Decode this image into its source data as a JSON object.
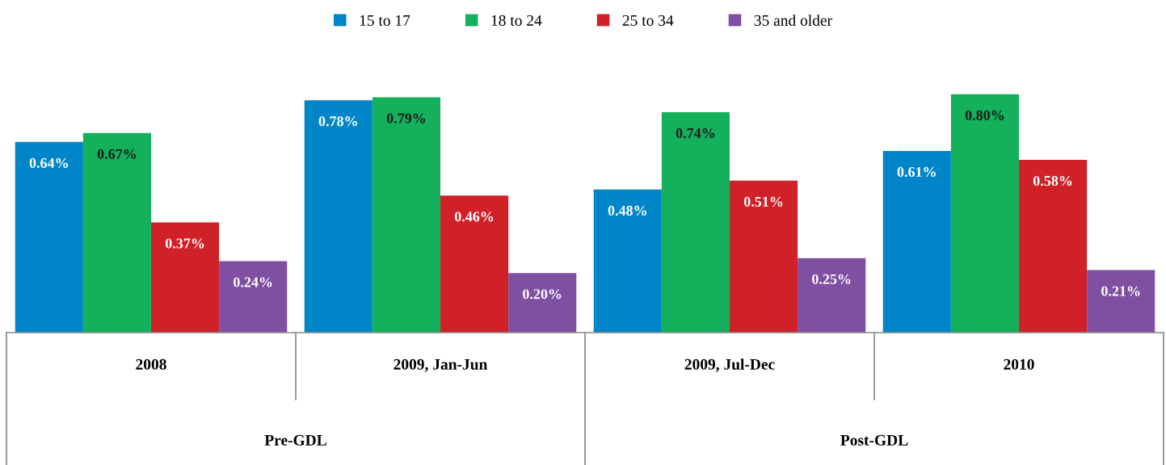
{
  "chart_data": {
    "type": "bar",
    "categories": [
      "2008",
      "2009, Jan-Jun",
      "2009, Jul-Dec",
      "2010"
    ],
    "series": [
      {
        "name": "15 to 17",
        "color": "#0086c8",
        "values": [
          0.64,
          0.78,
          0.48,
          0.61
        ],
        "value_labels": [
          "0.64%",
          "0.78%",
          "0.48%",
          "0.61%"
        ]
      },
      {
        "name": "18 to 24",
        "color": "#14b05c",
        "values": [
          0.67,
          0.79,
          0.74,
          0.8
        ],
        "value_labels": [
          "0.67%",
          "0.79%",
          "0.74%",
          "0.80%"
        ]
      },
      {
        "name": "25 to 34",
        "color": "#d02128",
        "values": [
          0.37,
          0.46,
          0.51,
          0.58
        ],
        "value_labels": [
          "0.37%",
          "0.46%",
          "0.51%",
          "0.58%"
        ]
      },
      {
        "name": "35 and older",
        "color": "#7f4fa2",
        "values": [
          0.24,
          0.2,
          0.25,
          0.21
        ],
        "value_labels": [
          "0.24%",
          "0.20%",
          "0.25%",
          "0.21%"
        ]
      }
    ],
    "annotations": [
      "Pre-GDL",
      "Post-GDL"
    ],
    "legend": "top"
  }
}
